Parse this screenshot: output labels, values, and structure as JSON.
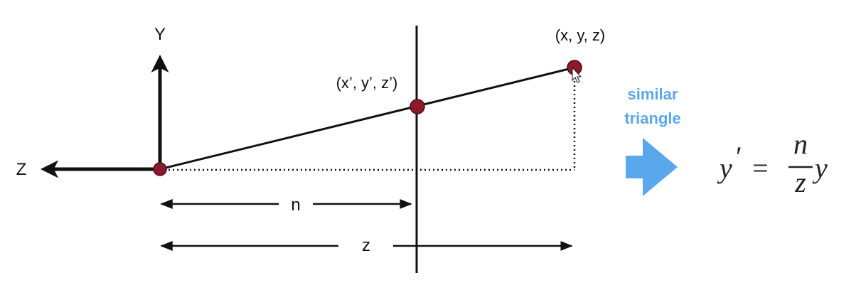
{
  "colors": {
    "line": "#111111",
    "point": "#8b1a2a",
    "accent": "#5aa8ec",
    "formula": "#222222"
  },
  "axes": {
    "y_label": "Y",
    "z_label": "Z"
  },
  "points": {
    "original": "(x, y, z)",
    "projected": "(x’, y’, z’)"
  },
  "dimensions": {
    "near": "n",
    "depth": "z"
  },
  "annotation": {
    "line1": "similar",
    "line2": "triangle",
    "arrow_icon": "right-arrow-icon"
  },
  "formula": {
    "lhs": "y",
    "prime": "′",
    "equals": "=",
    "numerator": "n",
    "denominator": "z",
    "rhs_var": "y"
  }
}
